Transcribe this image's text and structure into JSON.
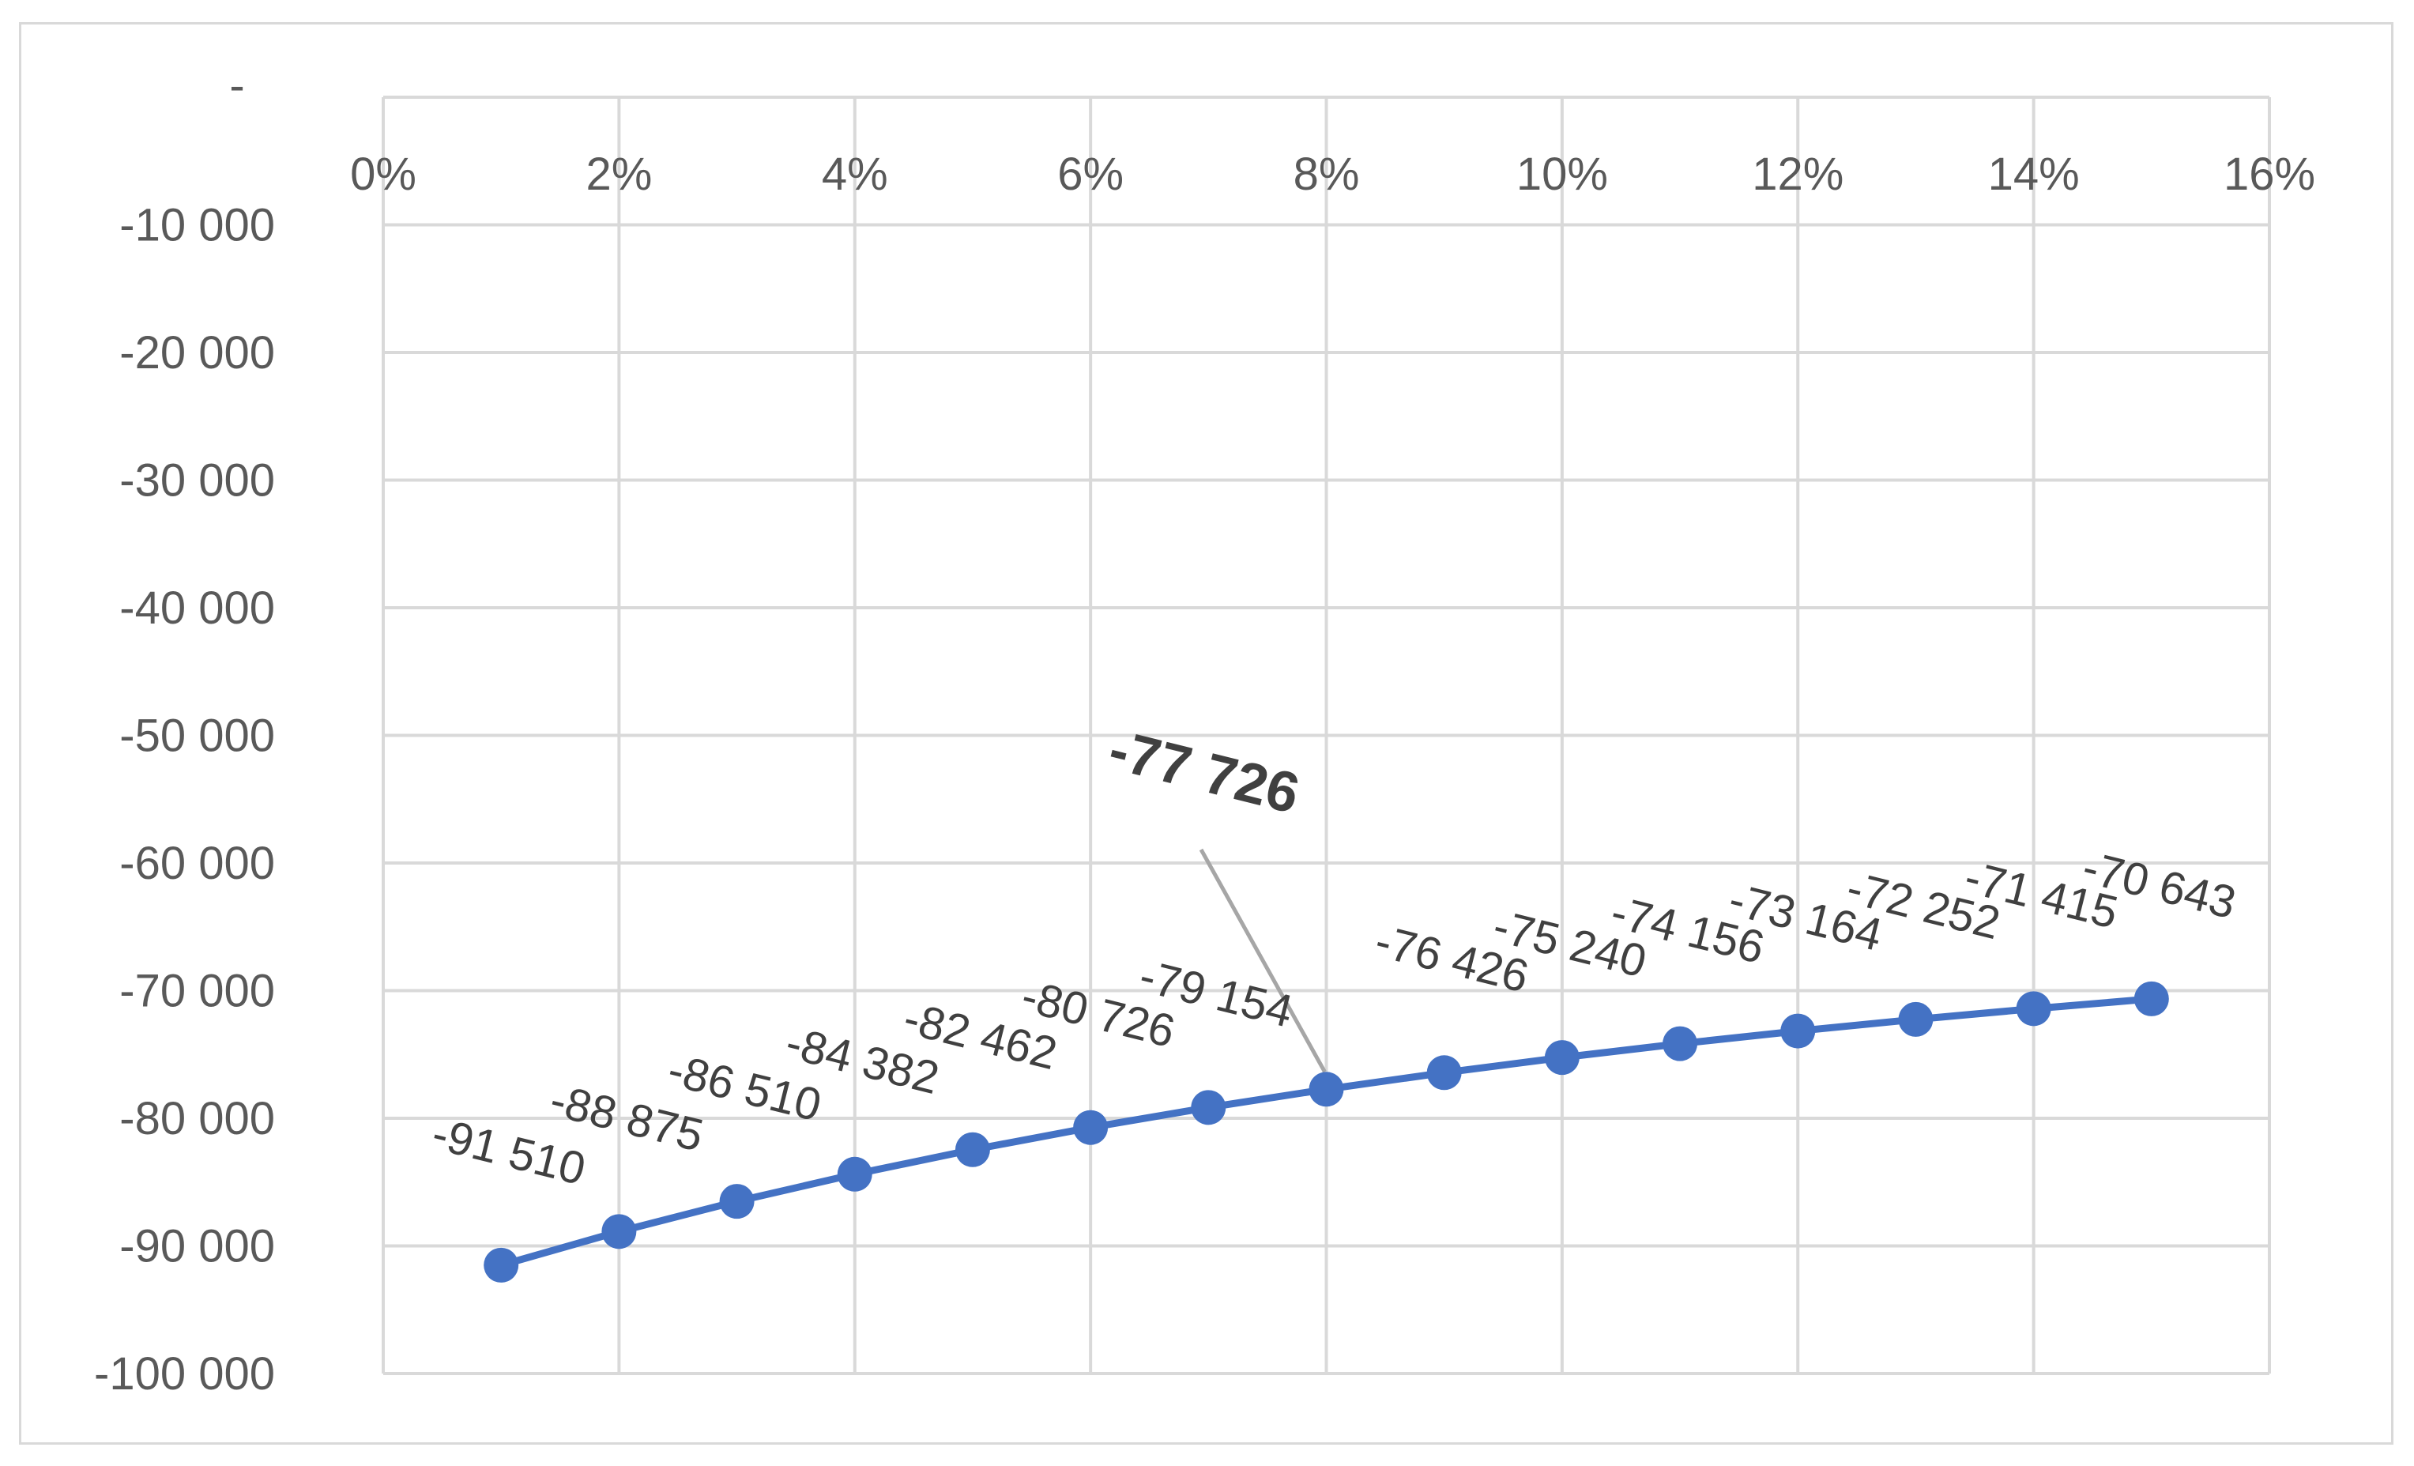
{
  "chart_data": {
    "type": "line",
    "title": "",
    "xlabel": "",
    "ylabel": "",
    "x_ticks": [
      "0%",
      "2%",
      "4%",
      "6%",
      "8%",
      "10%",
      "12%",
      "14%",
      "16%"
    ],
    "y_ticks": [
      "-",
      "-10 000",
      "-20 000",
      "-30 000",
      "-40 000",
      "-50 000",
      "-60 000",
      "-70 000",
      "-80 000",
      "-90 000",
      "-100 000"
    ],
    "xlim": [
      0,
      0.16
    ],
    "ylim": [
      -100000,
      0
    ],
    "x_axis_position": "top",
    "grid": true,
    "legend": "none",
    "series": [
      {
        "x": [
          0.01,
          0.02,
          0.03,
          0.04,
          0.05,
          0.06,
          0.07,
          0.08,
          0.09,
          0.1,
          0.11,
          0.12,
          0.13,
          0.14,
          0.15
        ],
        "values": [
          -91510,
          -88875,
          -86510,
          -84382,
          -82462,
          -80726,
          -79154,
          -77726,
          -76426,
          -75240,
          -74156,
          -73164,
          -72252,
          -71415,
          -70643
        ],
        "labels": [
          "-91 510",
          "-88 875",
          "-86 510",
          "-84 382",
          "-82 462",
          "-80 726",
          "-79 154",
          "-77 726",
          "-76 426",
          "-75 240",
          "-74 156",
          "-73 164",
          "-72 252",
          "-71 415",
          "-70 643"
        ],
        "color": "#4472c4"
      }
    ],
    "highlight": {
      "index": 7,
      "label": "-77 726"
    },
    "colors": {
      "grid": "#d9d9d9",
      "line": "#4472c4",
      "leader": "#a6a6a6",
      "label": "#404040",
      "tick": "#595959"
    }
  }
}
